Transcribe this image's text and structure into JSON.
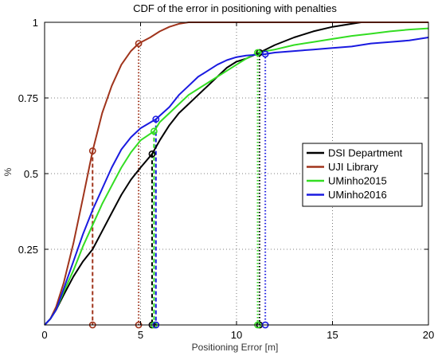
{
  "chart_data": {
    "type": "line",
    "title": "CDF of the error in positioning with penalties",
    "xlabel": "Positioning Error [m]",
    "ylabel": "%",
    "xlim": [
      0,
      20
    ],
    "ylim": [
      0,
      1
    ],
    "xticks": [
      0,
      5,
      10,
      15,
      20
    ],
    "xtick_labels": [
      "0",
      "5",
      "10",
      "15",
      "20"
    ],
    "yticks": [
      0.25,
      0.5,
      0.75,
      1
    ],
    "ytick_labels": [
      "0.25",
      "0.5",
      "0.75",
      "1"
    ],
    "grid": true,
    "legend_position": "right",
    "series": [
      {
        "name": "DSI Department",
        "color": "#000000",
        "x": [
          0,
          0.3,
          0.6,
          1.0,
          1.5,
          2.0,
          2.5,
          3.0,
          3.5,
          4.0,
          4.5,
          5.0,
          5.6,
          6.0,
          6.5,
          7.0,
          7.5,
          8.0,
          8.5,
          9.0,
          9.5,
          10.0,
          10.5,
          11.2,
          12.0,
          13.0,
          14.0,
          15.0,
          16.0,
          16.5
        ],
        "y": [
          0,
          0.02,
          0.05,
          0.1,
          0.16,
          0.21,
          0.25,
          0.31,
          0.37,
          0.43,
          0.48,
          0.52,
          0.565,
          0.61,
          0.66,
          0.7,
          0.73,
          0.76,
          0.79,
          0.82,
          0.85,
          0.87,
          0.88,
          0.9,
          0.925,
          0.95,
          0.97,
          0.985,
          0.995,
          1.0
        ]
      },
      {
        "name": "UJI Library",
        "color": "#a0341c",
        "x": [
          0,
          0.3,
          0.6,
          1.0,
          1.5,
          2.0,
          2.5,
          3.0,
          3.5,
          4.0,
          4.5,
          4.9,
          5.5,
          6.0,
          6.5,
          7.0,
          7.5,
          20
        ],
        "y": [
          0,
          0.02,
          0.06,
          0.14,
          0.27,
          0.42,
          0.575,
          0.7,
          0.79,
          0.86,
          0.905,
          0.93,
          0.95,
          0.97,
          0.985,
          0.995,
          1.0,
          1.0
        ]
      },
      {
        "name": "UMinho2015",
        "color": "#33dd22",
        "x": [
          0,
          0.3,
          0.6,
          1.0,
          1.5,
          2.0,
          2.5,
          3.0,
          3.5,
          4.0,
          4.5,
          5.0,
          5.7,
          6.0,
          6.5,
          7.0,
          7.5,
          8.0,
          8.5,
          9.0,
          9.5,
          10.0,
          10.5,
          11.1,
          12.0,
          13.0,
          14.0,
          15.0,
          16.0,
          17.0,
          18.0,
          19.0,
          20.0
        ],
        "y": [
          0,
          0.02,
          0.05,
          0.11,
          0.18,
          0.26,
          0.33,
          0.4,
          0.46,
          0.52,
          0.57,
          0.61,
          0.64,
          0.67,
          0.7,
          0.73,
          0.76,
          0.78,
          0.8,
          0.82,
          0.84,
          0.86,
          0.88,
          0.9,
          0.91,
          0.925,
          0.935,
          0.945,
          0.955,
          0.962,
          0.97,
          0.976,
          0.98
        ]
      },
      {
        "name": "UMinho2016",
        "color": "#1a1ae0",
        "x": [
          0,
          0.3,
          0.6,
          1.0,
          1.5,
          2.0,
          2.5,
          3.0,
          3.5,
          4.0,
          4.5,
          5.0,
          5.8,
          6.5,
          7.0,
          7.5,
          8.0,
          8.5,
          9.0,
          9.5,
          10.0,
          10.5,
          11.5,
          12.0,
          13.0,
          14.0,
          15.0,
          16.0,
          17.0,
          18.0,
          19.0,
          20.0
        ],
        "y": [
          0,
          0.02,
          0.05,
          0.12,
          0.21,
          0.3,
          0.38,
          0.45,
          0.52,
          0.58,
          0.62,
          0.65,
          0.68,
          0.72,
          0.76,
          0.79,
          0.82,
          0.84,
          0.86,
          0.875,
          0.885,
          0.89,
          0.895,
          0.9,
          0.905,
          0.91,
          0.915,
          0.92,
          0.93,
          0.935,
          0.94,
          0.95
        ]
      }
    ],
    "markers": [
      {
        "series": "UJI Library",
        "x": 2.5,
        "y": 0.575,
        "style": "dashed"
      },
      {
        "series": "UJI Library",
        "x": 4.9,
        "y": 0.93,
        "style": "dotted"
      },
      {
        "series": "DSI Department",
        "x": 5.6,
        "y": 0.565,
        "style": "dashed"
      },
      {
        "series": "UMinho2015",
        "x": 5.7,
        "y": 0.64,
        "style": "dashed"
      },
      {
        "series": "UMinho2016",
        "x": 5.8,
        "y": 0.68,
        "style": "dashed"
      },
      {
        "series": "DSI Department",
        "x": 11.2,
        "y": 0.9,
        "style": "dotted"
      },
      {
        "series": "UMinho2015",
        "x": 11.1,
        "y": 0.9,
        "style": "dotted"
      },
      {
        "series": "UMinho2016",
        "x": 11.5,
        "y": 0.895,
        "style": "dotted"
      }
    ]
  }
}
